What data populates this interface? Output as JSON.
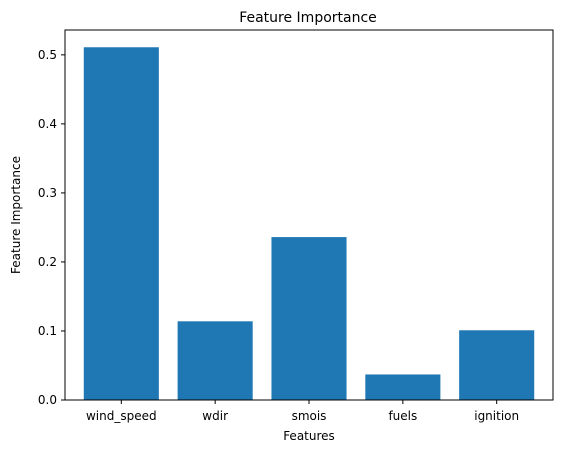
{
  "chart_data": {
    "type": "bar",
    "title": "Feature Importance",
    "xlabel": "Features",
    "ylabel": "Feature Importance",
    "categories": [
      "wind_speed",
      "wdir",
      "smois",
      "fuels",
      "ignition"
    ],
    "values": [
      0.511,
      0.114,
      0.236,
      0.037,
      0.101
    ],
    "ylim": [
      0,
      0.536
    ],
    "yticks": [
      0.0,
      0.1,
      0.2,
      0.3,
      0.4,
      0.5
    ],
    "ytick_labels": [
      "0.0",
      "0.1",
      "0.2",
      "0.3",
      "0.4",
      "0.5"
    ],
    "bar_color": "#1f77b4",
    "grid": false
  }
}
